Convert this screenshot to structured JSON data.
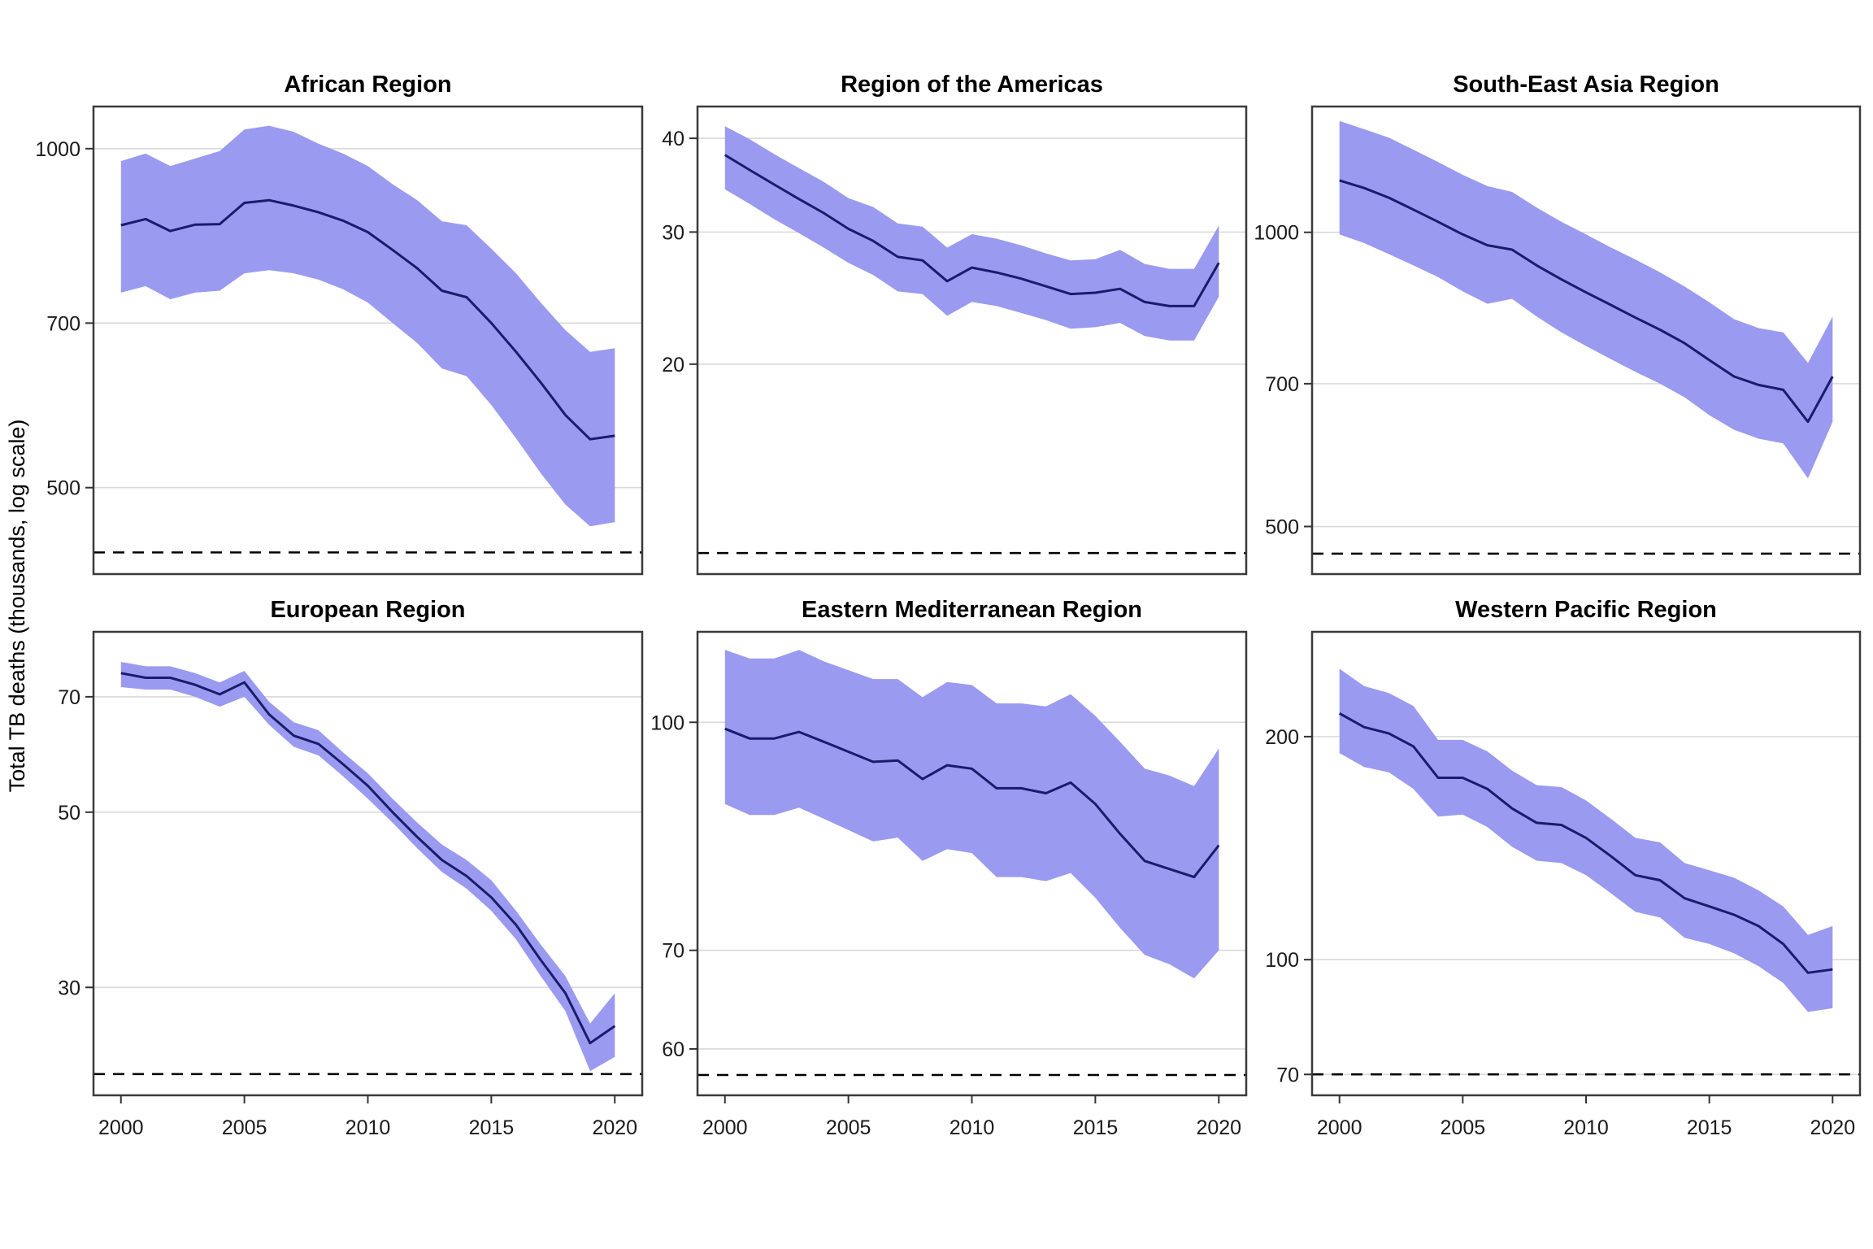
{
  "figure": {
    "y_axis_title": "Total TB deaths (thousands, log scale)",
    "x_axis_tick_labels": [
      "2000",
      "2005",
      "2010",
      "2015",
      "2020"
    ],
    "colors": {
      "ribbon": "#9a9af0",
      "trend_line": "#1b1b6b",
      "gridline": "#d9d9d9",
      "panel_border": "#3a3a3a",
      "dashed_target_line": "#000000",
      "background": "#ffffff",
      "text": "#000000"
    }
  },
  "chart_data": [
    {
      "type": "line",
      "title": "African Region",
      "x": [
        2000,
        2001,
        2002,
        2003,
        2004,
        2005,
        2006,
        2007,
        2008,
        2009,
        2010,
        2011,
        2012,
        2013,
        2014,
        2015,
        2016,
        2017,
        2018,
        2019,
        2020
      ],
      "series": [
        {
          "name": "best estimate",
          "values": [
            855,
            866,
            845,
            856,
            857,
            895,
            900,
            890,
            878,
            863,
            843,
            813,
            783,
            748,
            738,
            700,
            660,
            620,
            580,
            552,
            556
          ]
        },
        {
          "name": "uncertainty low",
          "values": [
            745,
            755,
            735,
            745,
            748,
            775,
            780,
            775,
            765,
            750,
            730,
            700,
            672,
            638,
            628,
            592,
            553,
            515,
            483,
            462,
            466
          ]
        },
        {
          "name": "uncertainty high",
          "values": [
            975,
            990,
            965,
            980,
            995,
            1040,
            1048,
            1035,
            1010,
            990,
            965,
            930,
            900,
            862,
            855,
            815,
            775,
            730,
            690,
            660,
            665
          ]
        }
      ],
      "yticks": [
        1000,
        700,
        500
      ],
      "ytick_labels": [
        "1000",
        "700",
        "500"
      ],
      "ylim": [
        419,
        1090
      ],
      "ylog": true,
      "grid": "horizontal-only",
      "legend": "none",
      "dashed_target": 438,
      "xticks": [
        2000,
        2005,
        2010,
        2015,
        2020
      ]
    },
    {
      "type": "line",
      "title": "Region of the Americas",
      "x": [
        2000,
        2001,
        2002,
        2003,
        2004,
        2005,
        2006,
        2007,
        2008,
        2009,
        2010,
        2011,
        2012,
        2013,
        2014,
        2015,
        2016,
        2017,
        2018,
        2019,
        2020
      ],
      "series": [
        {
          "name": "best estimate",
          "values": [
            38,
            36.3,
            34.7,
            33.2,
            31.8,
            30.3,
            29.2,
            27.8,
            27.5,
            25.8,
            26.9,
            26.5,
            26,
            25.4,
            24.8,
            24.9,
            25.2,
            24.2,
            23.9,
            23.9,
            27.3
          ]
        },
        {
          "name": "uncertainty low",
          "values": [
            34.2,
            32.7,
            31.2,
            29.9,
            28.6,
            27.3,
            26.3,
            25,
            24.8,
            23.2,
            24.2,
            23.9,
            23.4,
            22.9,
            22.3,
            22.4,
            22.7,
            21.8,
            21.5,
            21.5,
            24.6
          ]
        },
        {
          "name": "uncertainty high",
          "values": [
            41.5,
            39.9,
            38.1,
            36.5,
            35,
            33.3,
            32.4,
            30.8,
            30.5,
            28.6,
            29.8,
            29.4,
            28.8,
            28.1,
            27.5,
            27.6,
            28.4,
            27.2,
            26.8,
            26.8,
            30.6
          ]
        }
      ],
      "yticks": [
        40,
        30,
        20
      ],
      "ytick_labels": [
        "40",
        "30",
        "20"
      ],
      "ylim": [
        10.5,
        44.1
      ],
      "ylog": true,
      "grid": "horizontal-only",
      "legend": "none",
      "dashed_target": 11.2,
      "xticks": [
        2000,
        2005,
        2010,
        2015,
        2020
      ]
    },
    {
      "type": "line",
      "title": "South-East Asia Region",
      "x": [
        2000,
        2001,
        2002,
        2003,
        2004,
        2005,
        2006,
        2007,
        2008,
        2009,
        2010,
        2011,
        2012,
        2013,
        2014,
        2015,
        2016,
        2017,
        2018,
        2019,
        2020
      ],
      "series": [
        {
          "name": "best estimate",
          "values": [
            1130,
            1110,
            1085,
            1055,
            1025,
            995,
            970,
            960,
            925,
            895,
            868,
            843,
            818,
            795,
            770,
            740,
            712,
            698,
            690,
            640,
            712
          ]
        },
        {
          "name": "uncertainty low",
          "values": [
            995,
            975,
            950,
            925,
            900,
            870,
            845,
            855,
            820,
            790,
            765,
            742,
            720,
            700,
            678,
            650,
            628,
            615,
            608,
            560,
            640
          ]
        },
        {
          "name": "uncertainty high",
          "values": [
            1300,
            1275,
            1250,
            1215,
            1180,
            1145,
            1115,
            1100,
            1060,
            1025,
            995,
            965,
            938,
            910,
            880,
            848,
            815,
            798,
            790,
            735,
            820
          ]
        }
      ],
      "yticks": [
        1000,
        700,
        500
      ],
      "ytick_labels": [
        "1000",
        "700",
        "500"
      ],
      "ylim": [
        447,
        1345
      ],
      "ylog": true,
      "grid": "horizontal-only",
      "legend": "none",
      "dashed_target": 469,
      "xticks": [
        2000,
        2005,
        2010,
        2015,
        2020
      ]
    },
    {
      "type": "line",
      "title": "European Region",
      "x": [
        2000,
        2001,
        2002,
        2003,
        2004,
        2005,
        2006,
        2007,
        2008,
        2009,
        2010,
        2011,
        2012,
        2013,
        2014,
        2015,
        2016,
        2017,
        2018,
        2019,
        2020
      ],
      "series": [
        {
          "name": "best estimate",
          "values": [
            75,
            74,
            74,
            72.5,
            70.5,
            73,
            66.5,
            62.5,
            61,
            57.5,
            54,
            50,
            46.5,
            43.5,
            41.5,
            39,
            36,
            32.5,
            29.5,
            25.5,
            26.8
          ]
        },
        {
          "name": "uncertainty low",
          "values": [
            72,
            71.5,
            71.5,
            70,
            68,
            70,
            64.5,
            60.5,
            59,
            55.5,
            52,
            48.5,
            45,
            42,
            40,
            37.5,
            34.5,
            31,
            28,
            23.5,
            24.5
          ]
        },
        {
          "name": "uncertainty high",
          "values": [
            77.5,
            76.5,
            76.5,
            75,
            73,
            75.5,
            69,
            65,
            63.5,
            59.5,
            56,
            52,
            48.5,
            45.5,
            43.5,
            41,
            37.5,
            34,
            31,
            27,
            29.5
          ]
        }
      ],
      "yticks": [
        70,
        50,
        30
      ],
      "ytick_labels": [
        "70",
        "50",
        "30"
      ],
      "ylim": [
        21.9,
        84.6
      ],
      "ylog": true,
      "grid": "horizontal-only",
      "legend": "none",
      "dashed_target": 23.3,
      "xticks": [
        2000,
        2005,
        2010,
        2015,
        2020
      ]
    },
    {
      "type": "line",
      "title": "Eastern Mediterranean Region",
      "x": [
        2000,
        2001,
        2002,
        2003,
        2004,
        2005,
        2006,
        2007,
        2008,
        2009,
        2010,
        2011,
        2012,
        2013,
        2014,
        2015,
        2016,
        2017,
        2018,
        2019,
        2020
      ],
      "series": [
        {
          "name": "best estimate",
          "values": [
            99,
            97.5,
            97.5,
            98.5,
            97,
            95.5,
            94,
            94.2,
            91.5,
            93.5,
            93,
            90.2,
            90.2,
            89.5,
            91,
            88,
            84,
            80.5,
            79.5,
            78.5,
            82.5
          ]
        },
        {
          "name": "uncertainty low",
          "values": [
            88,
            86.5,
            86.5,
            87.5,
            86,
            84.5,
            83,
            83.5,
            80.5,
            82,
            81.5,
            78.5,
            78.5,
            78,
            79,
            76,
            72.5,
            69.5,
            68.5,
            67,
            70
          ]
        },
        {
          "name": "uncertainty high",
          "values": [
            112,
            110.5,
            110.5,
            112,
            110,
            108.5,
            107,
            107,
            104,
            106.5,
            106,
            103,
            103,
            102.5,
            104.5,
            101,
            97,
            93,
            92,
            90.5,
            96
          ]
        }
      ],
      "yticks": [
        100,
        70,
        60
      ],
      "ytick_labels": [
        "100",
        "70",
        "60"
      ],
      "ylim": [
        55.8,
        115.2
      ],
      "ylog": true,
      "grid": "horizontal-only",
      "legend": "none",
      "dashed_target": 57.6,
      "xticks": [
        2000,
        2005,
        2010,
        2015,
        2020
      ]
    },
    {
      "type": "line",
      "title": "Western Pacific Region",
      "x": [
        2000,
        2001,
        2002,
        2003,
        2004,
        2005,
        2006,
        2007,
        2008,
        2009,
        2010,
        2011,
        2012,
        2013,
        2014,
        2015,
        2016,
        2017,
        2018,
        2019,
        2020
      ],
      "series": [
        {
          "name": "best estimate",
          "values": [
            215,
            206,
            202,
            194,
            176,
            176,
            170,
            160,
            153,
            152,
            146,
            138,
            130,
            128,
            121,
            118,
            115,
            111,
            105,
            96,
            97
          ]
        },
        {
          "name": "uncertainty low",
          "values": [
            190,
            182,
            179,
            170,
            156,
            157,
            151,
            142,
            136,
            135,
            130,
            123,
            116,
            114,
            107,
            105,
            102,
            98,
            93,
            85,
            86
          ]
        },
        {
          "name": "uncertainty high",
          "values": [
            247,
            234,
            229,
            220,
            198,
            198,
            191,
            180,
            172,
            171,
            164,
            155,
            146,
            144,
            135,
            132,
            129,
            124,
            118,
            108,
            111
          ]
        }
      ],
      "yticks": [
        200,
        100,
        70
      ],
      "ytick_labels": [
        "200",
        "100",
        "70"
      ],
      "ylim": [
        65.6,
        277
      ],
      "ylog": true,
      "grid": "horizontal-only",
      "legend": "none",
      "dashed_target": 70,
      "xticks": [
        2000,
        2005,
        2010,
        2015,
        2020
      ]
    }
  ]
}
